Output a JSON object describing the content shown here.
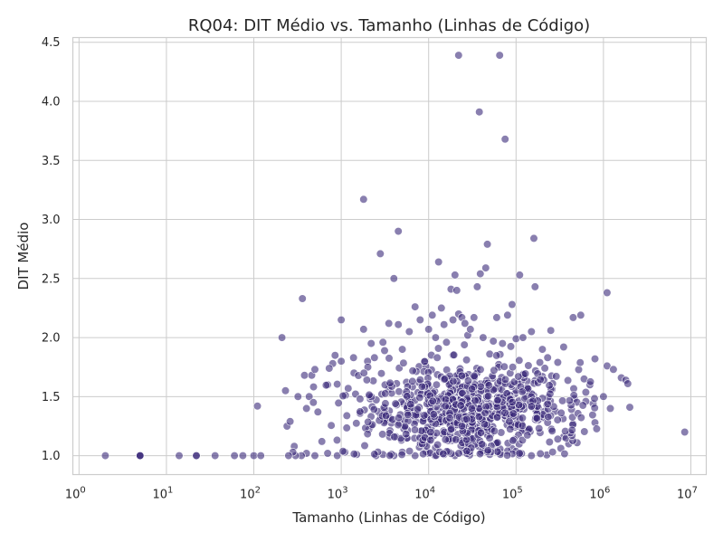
{
  "chart_data": {
    "type": "scatter",
    "title": "RQ04: DIT Médio vs. Tamanho (Linhas de Código)",
    "xlabel": "Tamanho (Linhas de Código)",
    "ylabel": "DIT Médio",
    "x_scale": "log",
    "xlim": [
      0.85,
      15000000
    ],
    "ylim": [
      0.84,
      4.54
    ],
    "grid": true,
    "point_color": "#3b2a7a",
    "point_opacity": 0.6,
    "x_ticks": [
      {
        "value": 1,
        "base": "10",
        "exp": "0"
      },
      {
        "value": 10,
        "base": "10",
        "exp": "1"
      },
      {
        "value": 100,
        "base": "10",
        "exp": "2"
      },
      {
        "value": 1000,
        "base": "10",
        "exp": "3"
      },
      {
        "value": 10000,
        "base": "10",
        "exp": "4"
      },
      {
        "value": 100000,
        "base": "10",
        "exp": "5"
      },
      {
        "value": 1000000,
        "base": "10",
        "exp": "6"
      },
      {
        "value": 10000000,
        "base": "10",
        "exp": "7"
      }
    ],
    "y_ticks": [
      {
        "value": 1.0,
        "label": "1.0"
      },
      {
        "value": 1.5,
        "label": "1.5"
      },
      {
        "value": 2.0,
        "label": "2.0"
      },
      {
        "value": 2.5,
        "label": "2.5"
      },
      {
        "value": 3.0,
        "label": "3.0"
      },
      {
        "value": 3.5,
        "label": "3.5"
      },
      {
        "value": 4.0,
        "label": "4.0"
      },
      {
        "value": 4.5,
        "label": "4.5"
      }
    ],
    "points": [
      [
        2,
        1.0
      ],
      [
        5,
        1.0
      ],
      [
        5,
        1.0
      ],
      [
        5,
        1.0
      ],
      [
        14,
        1.0
      ],
      [
        22,
        1.0
      ],
      [
        22,
        1.0
      ],
      [
        36,
        1.0
      ],
      [
        60,
        1.0
      ],
      [
        75,
        1.0
      ],
      [
        100,
        1.0
      ],
      [
        120,
        1.0
      ],
      [
        110,
        1.42
      ],
      [
        210,
        2.0
      ],
      [
        230,
        1.55
      ],
      [
        240,
        1.25
      ],
      [
        260,
        1.29
      ],
      [
        290,
        1.08
      ],
      [
        320,
        1.5
      ],
      [
        360,
        2.33
      ],
      [
        380,
        1.68
      ],
      [
        400,
        1.4
      ],
      [
        430,
        1.5
      ],
      [
        460,
        1.68
      ],
      [
        500,
        1.73
      ],
      [
        540,
        1.37
      ],
      [
        600,
        1.12
      ],
      [
        700,
        1.6
      ],
      [
        800,
        1.78
      ],
      [
        850,
        1.85
      ],
      [
        1000,
        2.15
      ],
      [
        1000,
        1.8
      ],
      [
        1200,
        1.57
      ],
      [
        1400,
        1.7
      ],
      [
        1800,
        3.17
      ],
      [
        1800,
        2.07
      ],
      [
        2000,
        1.8
      ],
      [
        2200,
        1.95
      ],
      [
        2400,
        1.83
      ],
      [
        2800,
        2.71
      ],
      [
        3000,
        1.96
      ],
      [
        3500,
        2.12
      ],
      [
        4000,
        2.5
      ],
      [
        4500,
        2.9
      ],
      [
        4500,
        2.11
      ],
      [
        5000,
        1.9
      ],
      [
        6000,
        2.05
      ],
      [
        7000,
        2.26
      ],
      [
        8000,
        2.15
      ],
      [
        9000,
        1.8
      ],
      [
        10000,
        2.07
      ],
      [
        11000,
        2.19
      ],
      [
        12000,
        2.0
      ],
      [
        13000,
        2.64
      ],
      [
        14000,
        2.25
      ],
      [
        15000,
        2.11
      ],
      [
        16000,
        1.96
      ],
      [
        18000,
        2.41
      ],
      [
        19000,
        2.15
      ],
      [
        20000,
        2.53
      ],
      [
        21000,
        2.4
      ],
      [
        22000,
        2.2
      ],
      [
        22000,
        4.39
      ],
      [
        24000,
        2.17
      ],
      [
        26000,
        2.12
      ],
      [
        28000,
        2.02
      ],
      [
        30000,
        2.07
      ],
      [
        33000,
        2.17
      ],
      [
        36000,
        2.43
      ],
      [
        38000,
        3.91
      ],
      [
        39000,
        2.54
      ],
      [
        42000,
        2.0
      ],
      [
        45000,
        2.59
      ],
      [
        47000,
        2.79
      ],
      [
        50000,
        1.86
      ],
      [
        55000,
        1.97
      ],
      [
        60000,
        2.17
      ],
      [
        65000,
        4.39
      ],
      [
        70000,
        1.95
      ],
      [
        75000,
        3.68
      ],
      [
        80000,
        2.19
      ],
      [
        90000,
        2.28
      ],
      [
        100000,
        1.99
      ],
      [
        110000,
        2.53
      ],
      [
        120000,
        2.0
      ],
      [
        130000,
        1.5
      ],
      [
        150000,
        2.05
      ],
      [
        160000,
        2.84
      ],
      [
        165000,
        2.43
      ],
      [
        200000,
        1.9
      ],
      [
        230000,
        1.83
      ],
      [
        250000,
        2.06
      ],
      [
        300000,
        1.79
      ],
      [
        350000,
        1.92
      ],
      [
        450000,
        2.17
      ],
      [
        550000,
        2.19
      ],
      [
        600000,
        1.65
      ],
      [
        700000,
        1.6
      ],
      [
        800000,
        1.82
      ],
      [
        1100000,
        2.38
      ],
      [
        1100000,
        1.76
      ],
      [
        1300000,
        1.73
      ],
      [
        1600000,
        1.66
      ],
      [
        1800000,
        1.64
      ],
      [
        1900000,
        1.61
      ],
      [
        2000000,
        1.41
      ],
      [
        8500000,
        1.2
      ],
      [
        1000000,
        1.5
      ],
      [
        800000,
        1.28
      ],
      [
        1200000,
        1.4
      ],
      [
        500000,
        1.11
      ],
      [
        450000,
        1.27
      ],
      [
        400000,
        1.1
      ],
      [
        350000,
        1.16
      ],
      [
        300000,
        1.14
      ],
      [
        150000,
        1.0
      ],
      [
        120000,
        1.22
      ],
      [
        90000,
        1.06
      ],
      [
        80000,
        1.04
      ],
      [
        60000,
        1.04
      ],
      [
        50000,
        1.01
      ],
      [
        40000,
        1.03
      ],
      [
        30000,
        1.04
      ],
      [
        20000,
        1.0
      ],
      [
        15000,
        1.01
      ],
      [
        10000,
        1.02
      ],
      [
        7000,
        1.0
      ],
      [
        5000,
        1.03
      ],
      [
        4000,
        1.0
      ],
      [
        3000,
        1.01
      ],
      [
        2500,
        1.0
      ],
      [
        1500,
        1.01
      ],
      [
        1100,
        1.03
      ],
      [
        900,
        1.0
      ],
      [
        700,
        1.02
      ],
      [
        500,
        1.0
      ],
      [
        400,
        1.02
      ],
      [
        350,
        1.0
      ],
      [
        300,
        1.0
      ],
      [
        280,
        1.03
      ],
      [
        250,
        1.0
      ]
    ]
  }
}
